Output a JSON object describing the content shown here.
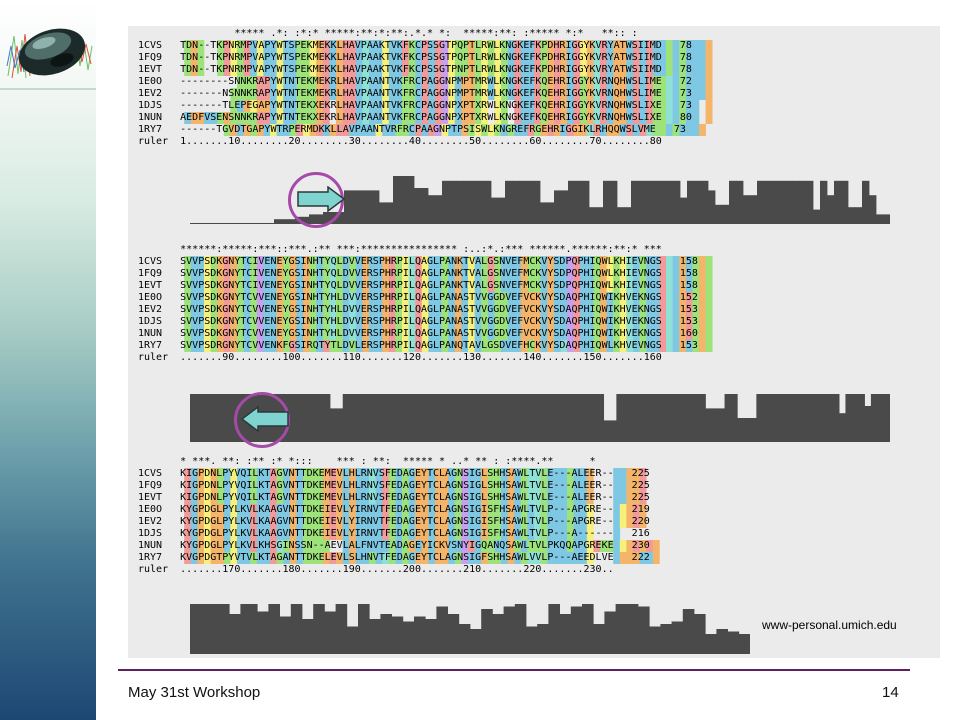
{
  "colors": {
    "accent_purple": "#a54aa8",
    "arrow_fill": "#7fd4d0",
    "histogram": "#4a4a4a",
    "residue_palette": [
      "#7ec8e3",
      "#9ee37a",
      "#f29a9a",
      "#c9a0ef",
      "#f4b56a",
      "#f7f07a",
      "#8fe0d5",
      "#e6e6e6"
    ]
  },
  "figure": {
    "blocks": [
      {
        "consensus": "         ***** .*: :*:* *****:**:*:**:.*.* *:  *****:**: :***** *:*   **:: :",
        "rows": [
          {
            "id": "1CVS",
            "seq": "TDN--TKPNRMPVAPYWTSPEKMEKKLHAVPAAKTVKFKCPSSGTPQPTLRWLKNGKEFKPDHRIGGYKVRYATWSIIMD",
            "num": "78"
          },
          {
            "id": "1FQ9",
            "seq": "TDN--TKPNRMPVAPYWTSPEKMEKKLHAVPAAKTVKFKCPSSGTPQPTLRWLKNGKEFKPDHRIGGYKVRYATWSIIMD",
            "num": "78"
          },
          {
            "id": "1EVT",
            "seq": "TDN--TKPNRMPVAPYWTSPEKMEKKLHAVPAAKTVKFKCPSSGTPNPTLRWLKNGKEFKPDHRIGGYKVRYATWSIIMD",
            "num": "78"
          },
          {
            "id": "1E0O",
            "seq": "--------SNNKRAPYWTNTEKMEKRLHAVPAANTVKFRCPAGGNPMPTMRWLKNGKEFKQEHRIGGYKVRNQHWSLIME",
            "num": "72"
          },
          {
            "id": "1EV2",
            "seq": "-------NSNNKRAPYWTNTEKMEKRLHAVPAANTVKFRCPAGGNPMPTMRWLKNGKEFKQEHRIGGYKVRNQHWSLIME",
            "num": "73"
          },
          {
            "id": "1DJS",
            "seq": "-------TLEPEGAPYWTNTEKXEKRLHAVPAANTVKFRCPAGGNPXPTXRWLKNGKEFKQEHRIGGYKVRNQHWSLIXE",
            "num": "73"
          },
          {
            "id": "1NUN",
            "seq": "AEDFVSENSNNKRAPYWTNTEKXEKRLHAVPAANTVKFRCPAGGNPXPTXRWLKNGKEFKQEHRIGGYKVRNQHWSLIXE",
            "num": "80"
          },
          {
            "id": "1RY7",
            "seq": "------TGVDTGAPYWTRPERMDKKLLAVPAANTVRFRCPAAGNPTPSISWLKNGREFRGEHRIGGIKLRHQQWSLVME",
            "num": "73"
          }
        ],
        "ruler": "1.......10........20........30........40........50........60........70........80"
      },
      {
        "consensus": "******:*****:***::***.:** ***:**************** :..:*.:*** ******.******:**:* ***",
        "rows": [
          {
            "id": "1CVS",
            "seq": "SVVPSDKGNYTCIVENEYGSINHTYQLDVVERSPHRPILQAGLPANKTVALGSNVEFMCKVYSDPQPHIQWLKHIEVNGS",
            "num": "158"
          },
          {
            "id": "1FQ9",
            "seq": "SVVPSDKGNYTCIVENEYGSINHTYQLDVVERSPHRPILQAGLPANKTVALGSNVEFMCKVYSDPQPHIQWLKHIEVNGS",
            "num": "158"
          },
          {
            "id": "1EVT",
            "seq": "SVVPSDKGNYTCIVENEYGSINHTYQLDVVERSPHRPILQAGLPANKTVALGSNVEFMCKVYSDPQPHIQWLKHIEVNGS",
            "num": "158"
          },
          {
            "id": "1E0O",
            "seq": "SVVPSDKGNYTCVVENEYGSINHTYHLDVVERSPHRPILQAGLPANASTVVGGDVEFVCKVYSDAQPHIQWIKHVEKNGS",
            "num": "152"
          },
          {
            "id": "1EV2",
            "seq": "SVVPSDKGNYTCVVENEYGSINHTYHLDVVERSPHRPILQAGLPANASTVVGGDVEFVCKVYSDAQPHIQWIKHVEKNGS",
            "num": "153"
          },
          {
            "id": "1DJS",
            "seq": "SVVPSDKGNYTCVVENEYGSINHTYHLDVVERSPHRPILQAGLPANASTVVGGDVEFVCKVYSDAQPHIQWIKHVEKNGS",
            "num": "153"
          },
          {
            "id": "1NUN",
            "seq": "SVVPSDKGNYTCVVENEYGSINHTYHLDVVERSPHRPILQAGLPANASTVVGGDVEFVCKVYSDAQPHIQWIKHVEKNGS",
            "num": "160"
          },
          {
            "id": "1RY7",
            "seq": "SVVPSDRGNYTCVVENKFGSIRQTYTLDVLERSPHRPILQAGLPANQTAVLGSDVEFHCKVYSDAQPHIQWLKHVEVNGS",
            "num": "153"
          }
        ],
        "ruler": ".......90........100.......110.......120.......130.......140.......150.......160"
      },
      {
        "consensus": "* ***. **: :** :* *:::    *** : **:  ***** * ..* ** : :****.**      *",
        "rows": [
          {
            "id": "1CVS",
            "seq": "KIGPDNLPYVQILKTAGVNTTDKEMEVLHLRNVSFEDAGEYTCLAGNSIGLSHHSAWLTVLE---ALEER--",
            "num": "225"
          },
          {
            "id": "1FQ9",
            "seq": "KIGPDNLPYVQILKTAGVNTTDKEMEVLHLRNVSFEDAGEYTCLAGNSIGLSHHSAWLTVLE---ALEER--",
            "num": "225"
          },
          {
            "id": "1EVT",
            "seq": "KIGPDNLPYVQILKTAGVNTTDKEMEVLHLRNVSFEDAGEYTCLAGNSIGLSHHSAWLTVLE---ALEER--",
            "num": "225"
          },
          {
            "id": "1E0O",
            "seq": "KYGPDGLPYLKVLKAAGVNTTDKEIEVLYIRNVTFEDAGEYTCLAGNSIGISFHSAWLTVLP---APGRE--",
            "num": "219"
          },
          {
            "id": "1EV2",
            "seq": "KYGPDGLPYLKVLKAAGVNTTDKEIEVLYIRNVTFEDAGEYTCLAGNSIGISFHSAWLTVLP---APGRE--",
            "num": "220"
          },
          {
            "id": "1DJS",
            "seq": "KYGPDGLPYLKVLKAAGVNTTDKEIEVLYIRNVTFEDAGEYTCLAGNSIGISFHSAWLTVLP---A------",
            "num": "216"
          },
          {
            "id": "1NUN",
            "seq": "KYGPDGLPYLKVLKHSGINSSN--AEVLALFNVTEADAGEYICKVSNYIGQANQSAWLTVLPKQQAPGREKE",
            "num": "230"
          },
          {
            "id": "1RY7",
            "seq": "KVGPDGTPYVTVLKTAGANTTDKELEVLSLHNVTFEDAGEYTCLAGNSIGFSHHSAWLVVLP---AEEDLVE",
            "num": "222"
          }
        ],
        "ruler": ".......170.......180.......190.......200.......210.......220.......230.."
      }
    ],
    "conservation_levels": [
      [
        0,
        0,
        0,
        0,
        0,
        0,
        0,
        0,
        0,
        0,
        0,
        0,
        0.1,
        0.1,
        0.1,
        0.15,
        0.15,
        0.2,
        0.2,
        0.25,
        0.25,
        0.25,
        0.7,
        0.7,
        0.7,
        0.7,
        0.7,
        0.45,
        0.45,
        1,
        1,
        1,
        0.75,
        0.75,
        0.6,
        0.6,
        0.9,
        0.9,
        0.9,
        0.9,
        0.9,
        0.9,
        0.9,
        0.55,
        0.55,
        0.9,
        0.9,
        0.9,
        0.9,
        0.9,
        0.45,
        0.45,
        0.7,
        0.7,
        0.9,
        0.9,
        0.9,
        0.35,
        0.35,
        0.9,
        0.9,
        0.35,
        0.35,
        0.9,
        0.9,
        0.9,
        0.9,
        0.9,
        0.9,
        0.9,
        0.55,
        0.9,
        0.9,
        0.9,
        0.7,
        0.4,
        0.4,
        0.9,
        0.9,
        0.6,
        0.6,
        0.9,
        0.9,
        0.9,
        0.9,
        0.9,
        0.9,
        0.9,
        0.9,
        0.3,
        0.9,
        0.6,
        0.9,
        0.9,
        0.35,
        0.35,
        0.9,
        0.6,
        0.2,
        0.2
      ],
      [
        1,
        1,
        1,
        1,
        1,
        1,
        1,
        1,
        1,
        1,
        1,
        1,
        1,
        1,
        1,
        1,
        1,
        1,
        1,
        1,
        1,
        1,
        0.7,
        0.7,
        1,
        1,
        1,
        1,
        1,
        1,
        1,
        1,
        1,
        1,
        1,
        1,
        1,
        1,
        1,
        1,
        1,
        1,
        1,
        1,
        1,
        1,
        1,
        1,
        1,
        1,
        1,
        1,
        1,
        1,
        1,
        1,
        1,
        1,
        1,
        1,
        1,
        1,
        1,
        1,
        1,
        0.45,
        0.45,
        1,
        1,
        1,
        1,
        1,
        1,
        1,
        1,
        1,
        1,
        1,
        1,
        1,
        1,
        0.7,
        0.7,
        0.7,
        1,
        1,
        0.5,
        0.5,
        0.5,
        1,
        1,
        1,
        1,
        1,
        1,
        1,
        1,
        1,
        1,
        1,
        1,
        1,
        0.6,
        1,
        1,
        1,
        0.75,
        1,
        1,
        1
      ],
      [
        1,
        1,
        1,
        1,
        1,
        1,
        1,
        0.8,
        0.8,
        1,
        1,
        1,
        0.85,
        0.85,
        1,
        1,
        0.75,
        0.75,
        1,
        1,
        0.7,
        0.7,
        1,
        1,
        0.85,
        0.85,
        1,
        1,
        0.55,
        0.55,
        1,
        1,
        0.7,
        0.7,
        0.8,
        0.8,
        0.75,
        0.75,
        0.65,
        0.65,
        0.75,
        0.75,
        0.7,
        0.7,
        0.95,
        0.95,
        0.8,
        0.8,
        0.6,
        0.6,
        0.5,
        0.5,
        0.9,
        0.9,
        0.8,
        0.8,
        0.95,
        0.95,
        1,
        1,
        0.55,
        0.55,
        0.6,
        0.6,
        1,
        1,
        0.8,
        0.8,
        0.95,
        0.95,
        1,
        1,
        0.6,
        0.6,
        0.85,
        0.85,
        1,
        1,
        1,
        1,
        0.95,
        0.95,
        0.55,
        0.55,
        0.6,
        0.6,
        0.65,
        0.65,
        0.9,
        0.9,
        0.8,
        0.8,
        0.4,
        0.4,
        0.5,
        0.5,
        0.45,
        0.45,
        0.4,
        0.4
      ]
    ],
    "credit": "www-personal.umich.edu"
  },
  "footer": {
    "left": "May 31st Workshop",
    "page_number": "14"
  }
}
